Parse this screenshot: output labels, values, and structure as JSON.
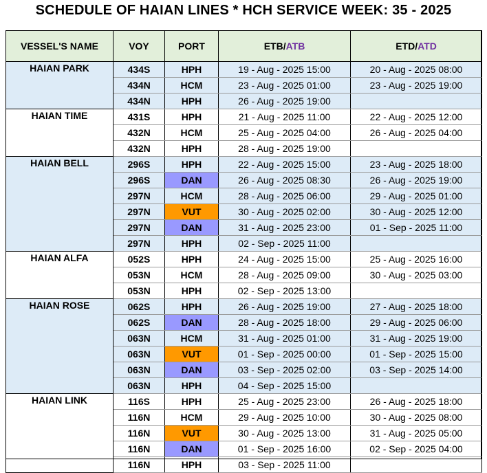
{
  "title": "SCHEDULE OF HAIAN LINES * HCH SERVICE WEEK: 35 - 2025",
  "headers": {
    "vessel": "VESSEL'S NAME",
    "voy": "VOY",
    "port": "PORT",
    "etb_a": "ETB/",
    "etb_b": "ATB",
    "etd_a": "ETD/",
    "etd_b": "ATD"
  },
  "colors": {
    "header_bg": "#e2efda",
    "group_blue": "#ddebf7",
    "vut": "#ff9900",
    "dan": "#9999ff",
    "actual_text": "#7030a0"
  },
  "groups": [
    {
      "vessel": "HAIAN PARK",
      "shade": true,
      "rows": [
        {
          "voy": "434S",
          "port": "HPH",
          "etb": "19 -  Aug - 2025 15:00",
          "etd": "20 -  Aug - 2025 08:00"
        },
        {
          "voy": "434N",
          "port": "HCM",
          "etb": "23 -  Aug - 2025 01:00",
          "etd": "23 -  Aug - 2025 19:00"
        },
        {
          "voy": "434N",
          "port": "HPH",
          "etb": "26 -  Aug - 2025 19:00",
          "etd": ""
        }
      ]
    },
    {
      "vessel": "HAIAN TIME",
      "shade": false,
      "rows": [
        {
          "voy": "431S",
          "port": "HPH",
          "etb": "21 -  Aug - 2025 11:00",
          "etd": "22 -  Aug - 2025 12:00"
        },
        {
          "voy": "432N",
          "port": "HCM",
          "etb": "25 -  Aug - 2025 04:00",
          "etd": "26 -  Aug - 2025 04:00"
        },
        {
          "voy": "432N",
          "port": "HPH",
          "etb": "28 -  Aug - 2025 19:00",
          "etd": ""
        }
      ]
    },
    {
      "vessel": "HAIAN BELL",
      "shade": true,
      "rows": [
        {
          "voy": "296S",
          "port": "HPH",
          "etb": "22 -  Aug - 2025 15:00",
          "etd": "23 -  Aug - 2025 18:00"
        },
        {
          "voy": "296S",
          "port": "DAN",
          "etb": "26 -  Aug - 2025 08:30",
          "etd": "26 -  Aug - 2025 19:00"
        },
        {
          "voy": "297N",
          "port": "HCM",
          "etb": "28 -  Aug - 2025 06:00",
          "etd": "29 -  Aug - 2025 01:00"
        },
        {
          "voy": "297N",
          "port": "VUT",
          "etb": "30 -  Aug - 2025 02:00",
          "etd": "30 -  Aug - 2025 12:00"
        },
        {
          "voy": "297N",
          "port": "DAN",
          "etb": "31 -  Aug - 2025 23:00",
          "etd": "01 -  Sep - 2025 11:00"
        },
        {
          "voy": "297N",
          "port": "HPH",
          "etb": "02 -  Sep - 2025 11:00",
          "etd": ""
        }
      ]
    },
    {
      "vessel": "HAIAN ALFA",
      "shade": false,
      "rows": [
        {
          "voy": "052S",
          "port": "HPH",
          "etb": "24 -  Aug - 2025 15:00",
          "etd": "25 -  Aug - 2025 16:00"
        },
        {
          "voy": "053N",
          "port": "HCM",
          "etb": "28 -  Aug - 2025 09:00",
          "etd": "30 -  Aug - 2025 03:00"
        },
        {
          "voy": "053N",
          "port": "HPH",
          "etb": "02 -  Sep - 2025 13:00",
          "etd": ""
        }
      ]
    },
    {
      "vessel": "HAIAN ROSE",
      "shade": true,
      "rows": [
        {
          "voy": "062S",
          "port": "HPH",
          "etb": "26 -  Aug - 2025 19:00",
          "etd": "27 -  Aug - 2025 18:00"
        },
        {
          "voy": "062S",
          "port": "DAN",
          "etb": "28 -  Aug - 2025 18:00",
          "etd": "29 -  Aug - 2025 06:00"
        },
        {
          "voy": "063N",
          "port": "HCM",
          "etb": "31 -  Aug - 2025 01:00",
          "etd": "31 -  Aug - 2025 19:00"
        },
        {
          "voy": "063N",
          "port": "VUT",
          "etb": "01 -  Sep - 2025 00:00",
          "etd": "01 -  Sep - 2025 15:00"
        },
        {
          "voy": "063N",
          "port": "DAN",
          "etb": "03 -  Sep - 2025 02:00",
          "etd": "03 -  Sep - 2025 14:00"
        },
        {
          "voy": "063N",
          "port": "HPH",
          "etb": "04 -  Sep - 2025 15:00",
          "etd": ""
        }
      ]
    },
    {
      "vessel": "HAIAN LINK",
      "shade": false,
      "rows": [
        {
          "voy": "116S",
          "port": "HPH",
          "etb": "25 -  Aug - 2025 23:00",
          "etd": "26 -  Aug - 2025 18:00"
        },
        {
          "voy": "116N",
          "port": "HCM",
          "etb": "29 -  Aug - 2025 10:00",
          "etd": "30 -  Aug - 2025 08:00"
        },
        {
          "voy": "116N",
          "port": "VUT",
          "etb": "30 -  Aug - 2025 13:00",
          "etd": "31 -  Aug - 2025 05:00"
        },
        {
          "voy": "116N",
          "port": "DAN",
          "etb": "01 -  Sep - 2025 16:00",
          "etd": "02 -  Sep - 2025 04:00"
        },
        {
          "voy": "116N",
          "port": "HPH",
          "etb": "03 -  Sep - 2025 11:00",
          "etd": ""
        }
      ]
    }
  ]
}
